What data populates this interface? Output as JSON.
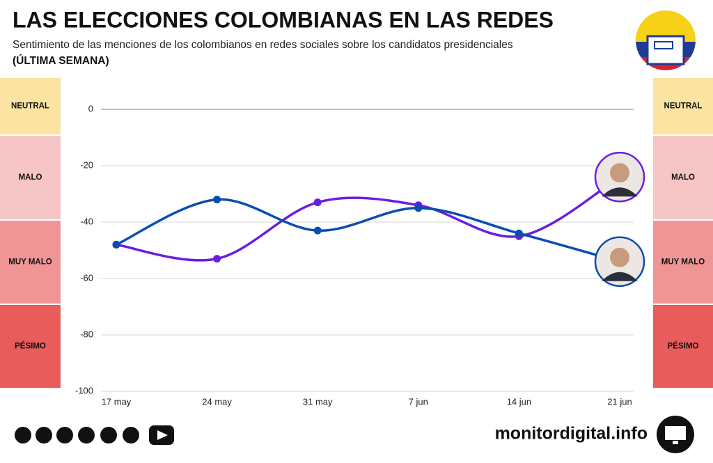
{
  "chart_data": {
    "type": "line",
    "title": "LAS ELECCIONES COLOMBIANAS EN LAS REDES",
    "subtitle": "Sentimiento de las menciones de los colombianos en redes sociales sobre los candidatos presidenciales",
    "period": "(ÚLTIMA SEMANA)",
    "bands": [
      "NEUTRAL",
      "MALO",
      "MUY MALO",
      "PÉSIMO"
    ],
    "categories": [
      "17 may",
      "24 may",
      "31 may",
      "7 jun",
      "14 jun",
      "21 jun"
    ],
    "series": [
      {
        "color": "#6a1ee0",
        "values": [
          -48,
          -53,
          -33,
          -34,
          -45,
          -24
        ]
      },
      {
        "color": "#0a4db0",
        "values": [
          -48,
          -32,
          -43,
          -35,
          -44,
          -54
        ]
      }
    ],
    "ylim": [
      -100,
      0
    ],
    "yticks": [
      0,
      -20,
      -40,
      -60,
      -80,
      -100
    ],
    "grid": true,
    "footer": "monitordigital.info"
  }
}
